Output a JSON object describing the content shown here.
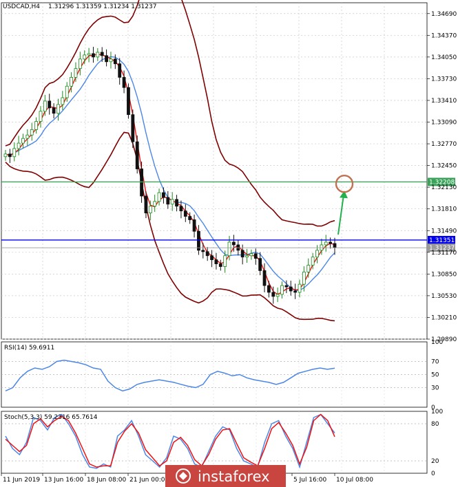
{
  "chart_data": [
    {
      "type": "candlestick",
      "title": "USDCAD,H4",
      "ohlc_header": "1.31296 1.31359 1.31234 1.31237",
      "ylim": [
        1.2989,
        1.3485
      ],
      "y_ticks": [
        "1.34690",
        "1.34370",
        "1.34050",
        "1.33730",
        "1.33410",
        "1.33090",
        "1.32770",
        "1.32450",
        "1.32130",
        "1.31810",
        "1.31490",
        "1.31170",
        "1.30850",
        "1.30530",
        "1.30210",
        "1.29890"
      ],
      "x_tick_labels": [
        "11 Jun 2019",
        "13 Jun 16:00",
        "18 Jun 08:00",
        "21 Jun 00:00",
        "5 Jul 16:00",
        "10 Jul 08:00"
      ],
      "close_series": [
        1.3262,
        1.3258,
        1.327,
        1.3278,
        1.3285,
        1.329,
        1.3298,
        1.331,
        1.3325,
        1.334,
        1.333,
        1.3322,
        1.3335,
        1.3345,
        1.3362,
        1.3375,
        1.3388,
        1.3402,
        1.3408,
        1.341,
        1.3405,
        1.3412,
        1.3407,
        1.3398,
        1.3402,
        1.3395,
        1.3375,
        1.336,
        1.332,
        1.328,
        1.324,
        1.32,
        1.3175,
        1.3185,
        1.3192,
        1.3205,
        1.3198,
        1.3188,
        1.3195,
        1.3185,
        1.3178,
        1.317,
        1.3165,
        1.3148,
        1.312,
        1.3118,
        1.3112,
        1.3106,
        1.31,
        1.3096,
        1.3112,
        1.3132,
        1.3128,
        1.312,
        1.311,
        1.3112,
        1.3115,
        1.3108,
        1.309,
        1.3068,
        1.3058,
        1.3052,
        1.3055,
        1.3068,
        1.3066,
        1.306,
        1.3058,
        1.307,
        1.3088,
        1.3098,
        1.311,
        1.312,
        1.3128,
        1.3132,
        1.313,
        1.3124
      ],
      "levels": [
        {
          "price": 1.32208,
          "label": "1.32208",
          "color": "#3aa35a"
        },
        {
          "price": 1.31351,
          "label": "1.31351",
          "color": "#0000ee"
        },
        {
          "price": 1.31237,
          "label": "1.31237",
          "color": "#9a9a9a"
        }
      ],
      "target_price": 1.3218,
      "colors": {
        "bullish": "#1a8a1a",
        "bearish": "#111111",
        "fast_ma": "#ee1111",
        "slow_ma": "#4a86e8",
        "envelope": "#7f0000",
        "arrow": "#22b14c",
        "circle": "#c0714f"
      }
    },
    {
      "type": "line",
      "title": "RSI(14) 59.6911",
      "ylim": [
        0,
        100
      ],
      "y_ticks": [
        "100",
        "70",
        "50",
        "30",
        "0"
      ],
      "series": [
        {
          "values": [
            25,
            30,
            45,
            55,
            60,
            58,
            62,
            70,
            72,
            70,
            68,
            65,
            60,
            58,
            40,
            30,
            25,
            28,
            35,
            38,
            40,
            42,
            40,
            38,
            35,
            32,
            30,
            35,
            50,
            55,
            52,
            48,
            50,
            45,
            42,
            40,
            38,
            35,
            38,
            45,
            52,
            55,
            58,
            60,
            58,
            59.7
          ]
        }
      ]
    },
    {
      "type": "line",
      "title": "Stoch(5,3,3) 59.2316 65.7614",
      "ylim": [
        0,
        100
      ],
      "y_ticks": [
        "100",
        "80",
        "20",
        "0"
      ],
      "series": [
        {
          "values": [
            60,
            40,
            30,
            50,
            90,
            85,
            70,
            90,
            95,
            80,
            60,
            30,
            10,
            8,
            15,
            10,
            60,
            70,
            85,
            60,
            30,
            20,
            10,
            25,
            60,
            55,
            40,
            15,
            10,
            35,
            60,
            75,
            70,
            40,
            20,
            15,
            10,
            50,
            80,
            85,
            60,
            40,
            10,
            50,
            90,
            95,
            80,
            65
          ]
        },
        {
          "values": [
            55,
            45,
            35,
            45,
            80,
            88,
            75,
            85,
            92,
            85,
            65,
            40,
            15,
            10,
            12,
            12,
            50,
            68,
            80,
            65,
            38,
            25,
            12,
            20,
            50,
            58,
            45,
            22,
            12,
            30,
            55,
            70,
            72,
            48,
            25,
            18,
            12,
            40,
            72,
            82,
            65,
            45,
            15,
            42,
            85,
            95,
            85,
            59
          ]
        }
      ]
    }
  ],
  "watermark": "instaforex"
}
